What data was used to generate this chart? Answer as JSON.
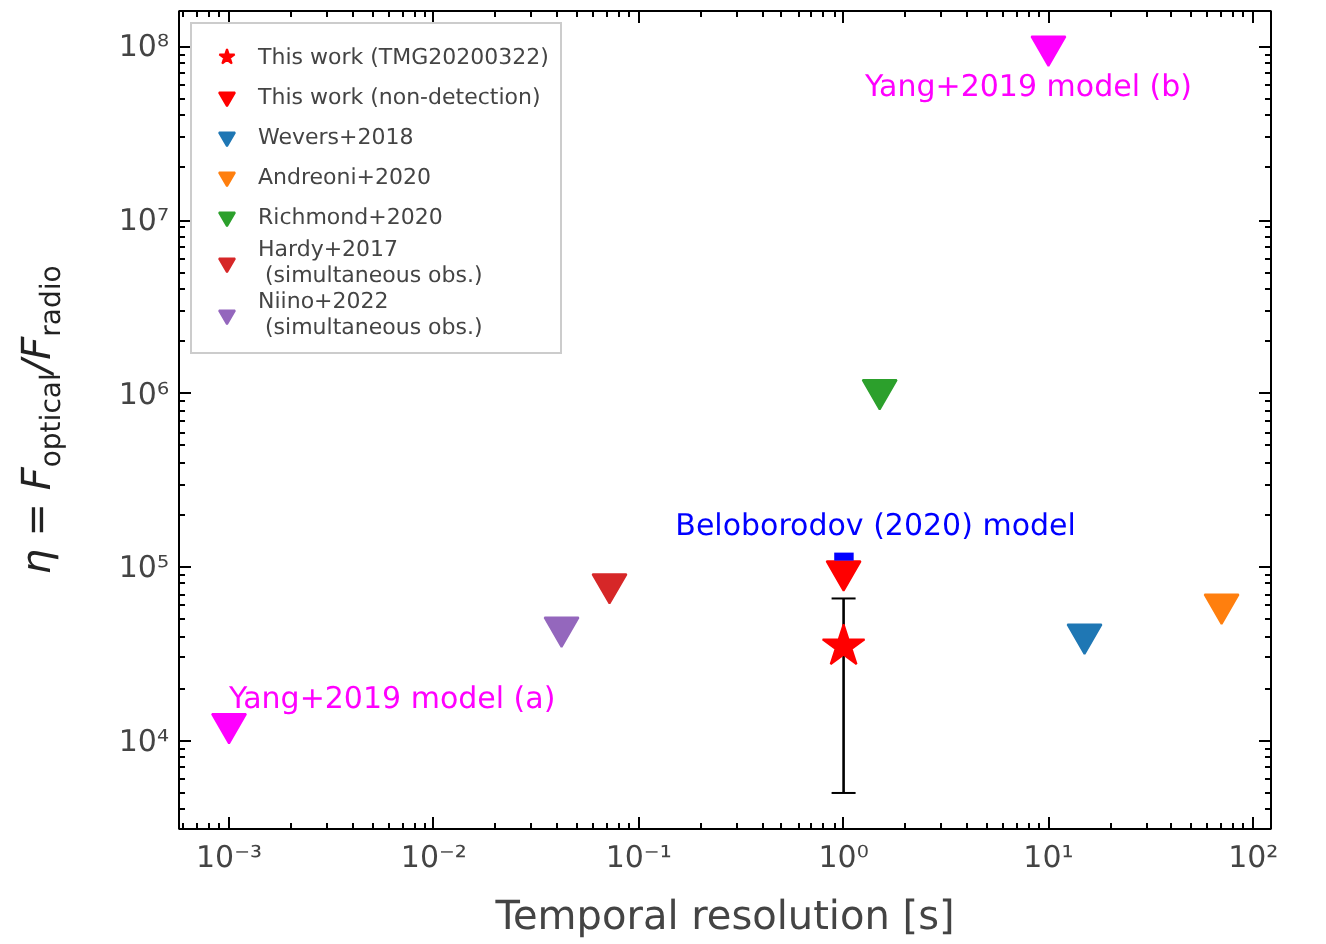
{
  "chart_data": {
    "type": "scatter",
    "xlabel": "Temporal resolution [s]",
    "ylabel": "η = F$_{optical}$/F$_{radio}$",
    "log": "xy",
    "grid": false,
    "legend": "top left",
    "xlim": [
      0.00057,
      122
    ],
    "ylim": [
      3100,
      160000000
    ],
    "xticks": [
      {
        "value": 0.001,
        "label": "10⁻³"
      },
      {
        "value": 0.01,
        "label": "10⁻²"
      },
      {
        "value": 0.1,
        "label": "10⁻¹"
      },
      {
        "value": 1,
        "label": "10⁰"
      },
      {
        "value": 10,
        "label": "10¹"
      },
      {
        "value": 100,
        "label": "10²"
      }
    ],
    "yticks": [
      {
        "value": 10000,
        "label": "10⁴"
      },
      {
        "value": 100000,
        "label": "10⁵"
      },
      {
        "value": 1000000,
        "label": "10⁶"
      },
      {
        "value": 10000000,
        "label": "10⁷"
      },
      {
        "value": 100000000,
        "label": "10⁸"
      }
    ],
    "series": [
      {
        "name": "This work (TMG20200322)",
        "color": "#ff0000",
        "marker": "star",
        "x": [
          1
        ],
        "values": [
          35000
        ],
        "errors": [
          [
            5000,
            66000
          ]
        ]
      },
      {
        "name": "This work (non-detection)",
        "color": "#ff0000",
        "marker": "triangle",
        "x": [
          1
        ],
        "values": [
          95000
        ]
      },
      {
        "name": "Wevers+2018",
        "color": "#1f77b4",
        "marker": "triangle",
        "x": [
          15
        ],
        "values": [
          41000
        ]
      },
      {
        "name": "Andreoni+2020",
        "color": "#ff7f0e",
        "marker": "triangle",
        "x": [
          70
        ],
        "values": [
          61000
        ]
      },
      {
        "name": "Richmond+2020",
        "color": "#2ca02c",
        "marker": "triangle",
        "x": [
          1.5
        ],
        "values": [
          1050000
        ]
      },
      {
        "name": "Hardy+2017\n (simultaneous obs.)",
        "color": "#d62728",
        "marker": "triangle",
        "x": [
          0.072
        ],
        "values": [
          80000
        ]
      },
      {
        "name": "Niino+2022\n (simultaneous obs.)",
        "color": "#9467bd",
        "marker": "triangle",
        "x": [
          0.042
        ],
        "values": [
          45000
        ]
      },
      {
        "color": "#ff00ff",
        "marker": "triangle",
        "x": [
          0.001,
          10
        ],
        "values": [
          12500,
          100000000
        ]
      },
      {
        "type": "line",
        "color": "#0000ff",
        "x": [
          0.9,
          1.12
        ],
        "values": [
          115000,
          115000
        ]
      }
    ],
    "annotations": [
      {
        "text": "Yang+2019 model (b)",
        "x": 10,
        "y": 100000000
      },
      {
        "text": "Yang+2019 model (a)",
        "x": 0.001,
        "y": 12500
      },
      {
        "text": "Beloborodov (2020) model",
        "x": 1,
        "y": 115000
      }
    ]
  }
}
